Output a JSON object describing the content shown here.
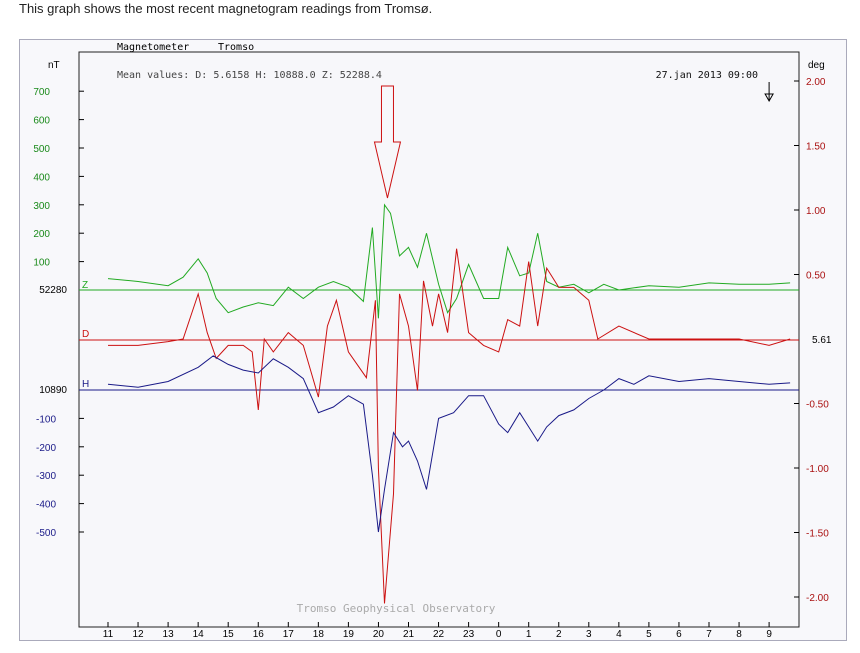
{
  "caption": "This graph shows the most recent magnetogram readings from Tromsø.",
  "chart_data": {
    "type": "line",
    "header_left": "Magnetometer",
    "header_station": "Tromso",
    "mean_values": "Mean values:  D: 5.6158   H: 10888.0   Z: 52288.4",
    "timestamp": "27.jan 2013 09:00",
    "left_unit": "nT",
    "right_unit": "deg",
    "watermark": "Tromso Geophysical Observatory",
    "x_ticks": [
      "11",
      "12",
      "13",
      "14",
      "15",
      "16",
      "17",
      "18",
      "19",
      "20",
      "21",
      "22",
      "23",
      "0",
      "1",
      "2",
      "3",
      "4",
      "5",
      "6",
      "7",
      "8",
      "9"
    ],
    "left_ticks_upper": [
      {
        "label": "700",
        "value": 700
      },
      {
        "label": "600",
        "value": 600
      },
      {
        "label": "500",
        "value": 500
      },
      {
        "label": "400",
        "value": 400
      },
      {
        "label": "300",
        "value": 300
      },
      {
        "label": "200",
        "value": 200
      },
      {
        "label": "100",
        "value": 100
      }
    ],
    "left_ticks_lower": [
      {
        "label": "-100",
        "value": -100
      },
      {
        "label": "-200",
        "value": -200
      },
      {
        "label": "-300",
        "value": -300
      },
      {
        "label": "-400",
        "value": -400
      },
      {
        "label": "-500",
        "value": -500
      }
    ],
    "right_ticks": [
      {
        "label": "2.00",
        "value": 2.0
      },
      {
        "label": "1.50",
        "value": 1.5
      },
      {
        "label": "1.00",
        "value": 1.0
      },
      {
        "label": "0.50",
        "value": 0.5
      },
      {
        "label": "-0.50",
        "value": -0.5
      },
      {
        "label": "-1.00",
        "value": -1.0
      },
      {
        "label": "-1.50",
        "value": -1.5
      },
      {
        "label": "-2.00",
        "value": -2.0
      }
    ],
    "baselines": {
      "Z": {
        "label": "52280",
        "color": "#22aa22"
      },
      "D": {
        "label": "5.61",
        "color": "#cc1111"
      },
      "H": {
        "label": "10890",
        "color": "#1a1a88"
      }
    },
    "series": [
      {
        "name": "Z",
        "color": "#22aa22",
        "unit": "nT",
        "x": [
          11,
          12,
          13,
          13.5,
          14,
          14.3,
          14.6,
          15,
          15.5,
          16,
          16.5,
          17,
          17.5,
          18,
          18.5,
          19,
          19.5,
          19.8,
          20,
          20.2,
          20.4,
          20.7,
          21,
          21.3,
          21.6,
          22,
          22.3,
          22.6,
          23,
          23.5,
          0,
          0.3,
          0.7,
          1,
          1.3,
          1.6,
          2,
          2.5,
          3,
          3.5,
          4,
          5,
          6,
          7,
          8,
          9,
          9.7
        ],
        "values": [
          40,
          30,
          15,
          45,
          110,
          60,
          -30,
          -80,
          -60,
          -45,
          -55,
          10,
          -30,
          10,
          30,
          10,
          -40,
          220,
          -100,
          300,
          270,
          120,
          150,
          80,
          200,
          20,
          -80,
          -30,
          90,
          -30,
          -30,
          150,
          50,
          60,
          200,
          30,
          10,
          20,
          -10,
          20,
          0,
          15,
          10,
          25,
          20,
          20,
          25
        ]
      },
      {
        "name": "D",
        "color": "#cc1111",
        "unit": "deg",
        "x": [
          11,
          12,
          13,
          13.5,
          14,
          14.3,
          14.6,
          15,
          15.5,
          15.8,
          16,
          16.2,
          16.5,
          17,
          17.5,
          18,
          18.3,
          18.6,
          19,
          19.3,
          19.6,
          19.9,
          20,
          20.2,
          20.5,
          20.7,
          21,
          21.3,
          21.5,
          21.8,
          22,
          22.3,
          22.6,
          23,
          23.5,
          0,
          0.3,
          0.7,
          1,
          1.3,
          1.6,
          2,
          2.5,
          3,
          3.3,
          4,
          5,
          6,
          7,
          8,
          9,
          9.7
        ],
        "values": [
          -0.05,
          -0.05,
          -0.02,
          0.0,
          0.35,
          0.05,
          -0.15,
          -0.05,
          -0.05,
          -0.1,
          -0.55,
          0.0,
          -0.1,
          0.05,
          -0.05,
          -0.45,
          0.1,
          0.3,
          -0.1,
          -0.2,
          -0.3,
          0.3,
          -1.0,
          -2.05,
          -1.2,
          0.35,
          0.1,
          -0.4,
          0.45,
          0.1,
          0.35,
          0.05,
          0.7,
          0.05,
          -0.05,
          -0.1,
          0.15,
          0.1,
          0.6,
          0.1,
          0.55,
          0.4,
          0.4,
          0.3,
          0.0,
          0.1,
          0.0,
          0.0,
          0.0,
          0.0,
          -0.05,
          0.0
        ]
      },
      {
        "name": "H",
        "color": "#1a1a88",
        "unit": "nT",
        "x": [
          11,
          12,
          13,
          14,
          14.5,
          15,
          15.5,
          16,
          16.5,
          17,
          17.5,
          18,
          18.5,
          19,
          19.5,
          19.8,
          20,
          20.2,
          20.5,
          20.8,
          21,
          21.3,
          21.6,
          22,
          22.5,
          23,
          23.5,
          0,
          0.3,
          0.7,
          1,
          1.3,
          1.6,
          2,
          2.5,
          3,
          3.5,
          4,
          4.5,
          5,
          6,
          7,
          8,
          9,
          9.7
        ],
        "values": [
          20,
          10,
          30,
          80,
          120,
          90,
          70,
          60,
          110,
          80,
          40,
          -80,
          -60,
          -20,
          -50,
          -300,
          -500,
          -350,
          -150,
          -200,
          -180,
          -250,
          -350,
          -100,
          -80,
          -20,
          -20,
          -120,
          -150,
          -80,
          -130,
          -180,
          -130,
          -90,
          -70,
          -30,
          0,
          40,
          20,
          50,
          30,
          40,
          30,
          20,
          25
        ]
      }
    ],
    "annotations": [
      {
        "type": "arrow-down",
        "color": "#cc1111",
        "x": 20.3
      },
      {
        "type": "arrow-down",
        "color": "#000000",
        "x": 9.0
      }
    ]
  }
}
